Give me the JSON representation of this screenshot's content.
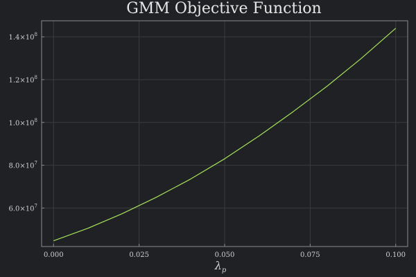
{
  "chart_data": {
    "type": "line",
    "title": "GMM Objective Function",
    "xlabel_main": "λ",
    "xlabel_sub": "p",
    "ylabel": "",
    "xlim": [
      -0.0035,
      0.1035
    ],
    "ylim": [
      42000000,
      147500000
    ],
    "grid": true,
    "legend": false,
    "x_ticks": [
      {
        "value": 0.0,
        "label": "0.000"
      },
      {
        "value": 0.025,
        "label": "0.025"
      },
      {
        "value": 0.05,
        "label": "0.050"
      },
      {
        "value": 0.075,
        "label": "0.075"
      },
      {
        "value": 0.1,
        "label": "0.100"
      }
    ],
    "y_ticks": [
      {
        "value": 60000000,
        "mantissa": "6.0",
        "times": "×10",
        "exp": "7"
      },
      {
        "value": 80000000,
        "mantissa": "8.0",
        "times": "×10",
        "exp": "7"
      },
      {
        "value": 100000000,
        "mantissa": "1.0",
        "times": "×10",
        "exp": "8"
      },
      {
        "value": 120000000,
        "mantissa": "1.2",
        "times": "×10",
        "exp": "8"
      },
      {
        "value": 140000000,
        "mantissa": "1.4",
        "times": "×10",
        "exp": "8"
      }
    ],
    "series": [
      {
        "color": "#a6e25b",
        "x": [
          0.0,
          0.01,
          0.02,
          0.03,
          0.04,
          0.05,
          0.06,
          0.07,
          0.08,
          0.09,
          0.1
        ],
        "y": [
          44700000,
          50500000,
          57300000,
          65000000,
          73500000,
          83000000,
          93600000,
          105000000,
          117000000,
          130000000,
          144000000
        ]
      }
    ]
  }
}
